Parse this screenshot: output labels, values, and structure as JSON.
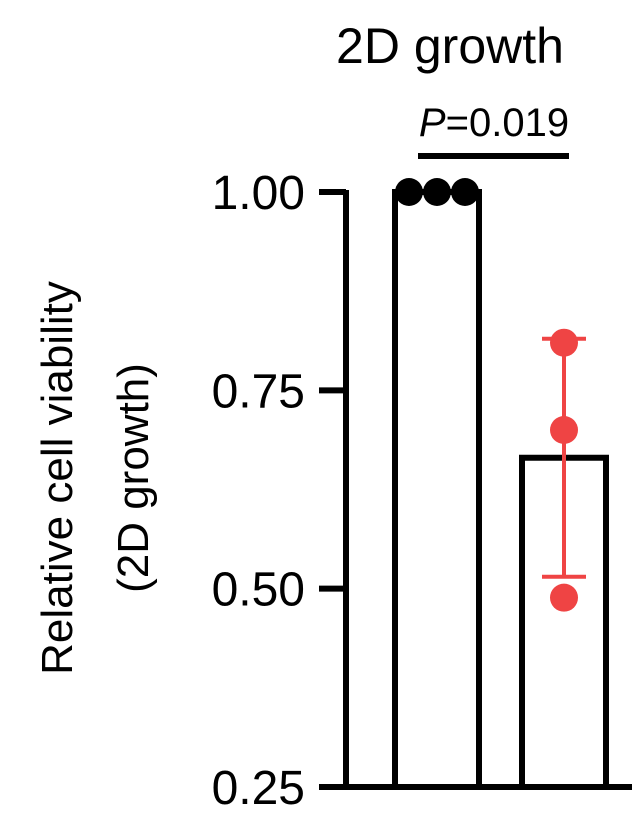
{
  "chart_data": {
    "type": "bar",
    "title": "2D growth",
    "ylabel_line1": "Relative cell viability",
    "ylabel_line2": "(2D growth)",
    "xlabel": "",
    "ylim": [
      0.25,
      1.0
    ],
    "yticks": [
      1.0,
      0.75,
      0.5,
      0.25
    ],
    "ytick_labels": [
      "1.00",
      "0.75",
      "0.50",
      "0.25"
    ],
    "categories": [
      "",
      ""
    ],
    "bars": [
      {
        "mean": 1.0,
        "points": [
          1.0,
          1.0,
          1.0
        ],
        "error": [
          1.0,
          1.0
        ],
        "point_color": "#000000",
        "error_color": "#000000"
      },
      {
        "mean": 0.665,
        "points": [
          0.81,
          0.7,
          0.5
        ],
        "error": [
          0.515,
          0.815
        ],
        "point_color": "#ef4444",
        "error_color": "#ef4444"
      }
    ],
    "significance": {
      "p_prefix": "P",
      "p_suffix": "=0.019",
      "between": [
        0,
        1
      ]
    },
    "grid": false,
    "legend": "none"
  }
}
